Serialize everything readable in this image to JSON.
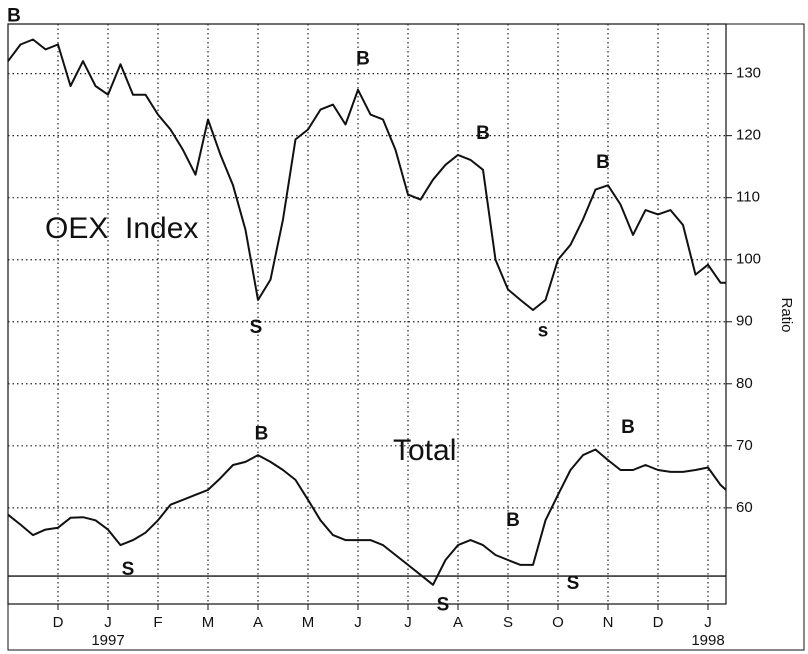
{
  "chart_data": {
    "type": "line",
    "y_label": "Ratio",
    "xlim": [
      0,
      14.36
    ],
    "ylim": [
      44.5,
      138
    ],
    "xticks": [
      {
        "value": 1,
        "label": "D"
      },
      {
        "value": 2,
        "label": "J"
      },
      {
        "value": 3,
        "label": "F"
      },
      {
        "value": 4,
        "label": "M"
      },
      {
        "value": 5,
        "label": "A"
      },
      {
        "value": 6,
        "label": "M"
      },
      {
        "value": 7,
        "label": "J"
      },
      {
        "value": 8,
        "label": "J"
      },
      {
        "value": 9,
        "label": "A"
      },
      {
        "value": 10,
        "label": "S"
      },
      {
        "value": 11,
        "label": "O"
      },
      {
        "value": 12,
        "label": "N"
      },
      {
        "value": 13,
        "label": "D"
      },
      {
        "value": 14,
        "label": "J"
      }
    ],
    "year_labels": [
      {
        "value": 2,
        "label": "1997"
      },
      {
        "value": 14,
        "label": "1998"
      }
    ],
    "yticks": [
      60,
      70,
      80,
      90,
      100,
      110,
      120,
      130
    ],
    "grid": true,
    "reference_line": 49,
    "x": [
      0,
      0.25,
      0.5,
      0.75,
      1,
      1.25,
      1.5,
      1.75,
      2,
      2.25,
      2.5,
      2.75,
      3,
      3.25,
      3.5,
      3.75,
      4,
      4.25,
      4.5,
      4.75,
      5,
      5.25,
      5.5,
      5.75,
      6,
      6.25,
      6.5,
      6.75,
      7,
      7.25,
      7.5,
      7.75,
      8,
      8.25,
      8.5,
      8.75,
      9,
      9.25,
      9.5,
      9.75,
      10,
      10.25,
      10.5,
      10.75,
      11,
      11.25,
      11.5,
      11.75,
      12,
      12.25,
      12.5,
      12.75,
      13,
      13.25,
      13.5,
      13.75,
      14,
      14.25,
      14.36
    ],
    "series": [
      {
        "name": "OEX  Index",
        "color": "#111111",
        "values": [
          132,
          134.7,
          135.5,
          133.9,
          134.7,
          128,
          132,
          128,
          126.6,
          131.5,
          126.6,
          126.6,
          123.4,
          121,
          117.7,
          113.7,
          122.6,
          116.9,
          112,
          104.8,
          93.5,
          96.8,
          106.5,
          119.4,
          121,
          124.2,
          125,
          121.8,
          127.4,
          123.4,
          122.6,
          117.7,
          110.5,
          109.7,
          112.9,
          115.3,
          116.9,
          116.1,
          114.5,
          100,
          95.2,
          93.5,
          91.9,
          93.5,
          100,
          102.4,
          106.5,
          111.3,
          112,
          108.9,
          104,
          108,
          107.3,
          108,
          105.6,
          97.6,
          99.2,
          96.3,
          96.3
        ]
      },
      {
        "name": "Total",
        "color": "#111111",
        "values": [
          58.9,
          57.3,
          55.6,
          56.5,
          56.8,
          58.4,
          58.5,
          58,
          56.5,
          54,
          54.8,
          56,
          58,
          60.5,
          61.3,
          62.1,
          62.9,
          64.8,
          66.9,
          67.4,
          68.5,
          67.4,
          66.1,
          64.5,
          61.3,
          58,
          55.6,
          54.8,
          54.8,
          54.8,
          54,
          52.4,
          50.8,
          49.2,
          47.6,
          51.6,
          54,
          54.8,
          54,
          52.4,
          51.6,
          50.8,
          50.8,
          58,
          62.1,
          66.1,
          68.5,
          69.4,
          67.7,
          66.1,
          66.1,
          66.9,
          66.1,
          65.8,
          65.8,
          66.1,
          66.5,
          63.7,
          62.9
        ]
      }
    ],
    "annotations": [
      {
        "text": "B",
        "x": 0.12,
        "y": 139.2
      },
      {
        "text": "B",
        "x": 7.1,
        "y": 132.3
      },
      {
        "text": "S",
        "x": 4.96,
        "y": 89
      },
      {
        "text": "B",
        "x": 9.5,
        "y": 120.3
      },
      {
        "text": "s",
        "x": 10.7,
        "y": 88.4
      },
      {
        "text": "B",
        "x": 11.9,
        "y": 115.6
      },
      {
        "text": "B",
        "x": 5.07,
        "y": 71.8
      },
      {
        "text": "S",
        "x": 2.4,
        "y": 50
      },
      {
        "text": "B",
        "x": 10.1,
        "y": 57.9
      },
      {
        "text": "S",
        "x": 8.7,
        "y": 44.3
      },
      {
        "text": "S",
        "x": 11.3,
        "y": 47.7
      },
      {
        "text": "B",
        "x": 12.4,
        "y": 72.9
      }
    ],
    "series_labels": [
      {
        "series": 0,
        "x": 0.74,
        "y": 104.8
      },
      {
        "series": 1,
        "x": 7.7,
        "y": 69
      }
    ]
  }
}
